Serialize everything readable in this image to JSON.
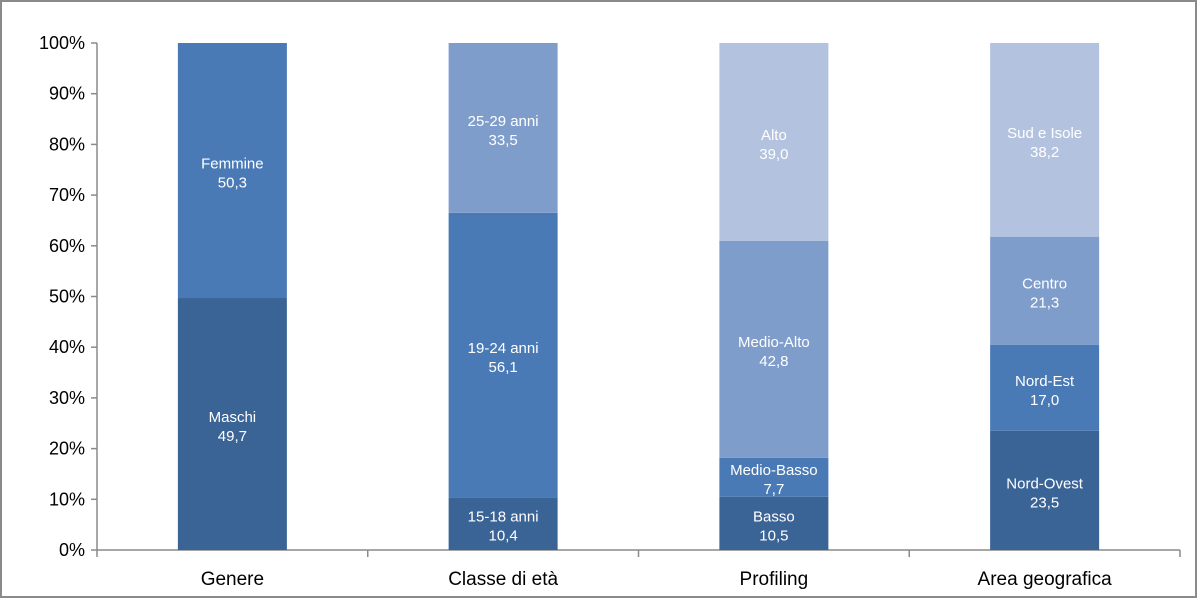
{
  "chart_data": {
    "type": "bar",
    "stacked": true,
    "percent_scale": true,
    "ylim": [
      0,
      100
    ],
    "y_ticks": [
      "0%",
      "10%",
      "20%",
      "30%",
      "40%",
      "50%",
      "60%",
      "70%",
      "80%",
      "90%",
      "100%"
    ],
    "categories": [
      "Genere",
      "Classe di età",
      "Profiling",
      "Area geografica"
    ],
    "grid": false,
    "legend": "none",
    "stacks": [
      {
        "category": "Genere",
        "segments": [
          {
            "label": "Maschi",
            "value": 49.7,
            "value_text": "49,7",
            "color": "#3b6496"
          },
          {
            "label": "Femmine",
            "value": 50.3,
            "value_text": "50,3",
            "color": "#4a7ab6"
          }
        ]
      },
      {
        "category": "Classe di età",
        "segments": [
          {
            "label": "15-18 anni",
            "value": 10.4,
            "value_text": "10,4",
            "color": "#3b6496"
          },
          {
            "label": "19-24 anni",
            "value": 56.1,
            "value_text": "56,1",
            "color": "#4a7ab6"
          },
          {
            "label": "25-29 anni",
            "value": 33.5,
            "value_text": "33,5",
            "color": "#7f9dcb"
          }
        ]
      },
      {
        "category": "Profiling",
        "segments": [
          {
            "label": "Basso",
            "value": 10.5,
            "value_text": "10,5",
            "color": "#3b6496"
          },
          {
            "label": "Medio-Basso",
            "value": 7.7,
            "value_text": "7,7",
            "color": "#4a7ab6"
          },
          {
            "label": "Medio-Alto",
            "value": 42.8,
            "value_text": "42,8",
            "color": "#7f9dcb"
          },
          {
            "label": "Alto",
            "value": 39.0,
            "value_text": "39,0",
            "color": "#b3c3df"
          }
        ]
      },
      {
        "category": "Area geografica",
        "segments": [
          {
            "label": "Nord-Ovest",
            "value": 23.5,
            "value_text": "23,5",
            "color": "#3b6496"
          },
          {
            "label": "Nord-Est",
            "value": 17.0,
            "value_text": "17,0",
            "color": "#4a7ab6"
          },
          {
            "label": "Centro",
            "value": 21.3,
            "value_text": "21,3",
            "color": "#7f9dcb"
          },
          {
            "label": "Sud e Isole",
            "value": 38.2,
            "value_text": "38,2",
            "color": "#b3c3df"
          }
        ]
      }
    ]
  }
}
